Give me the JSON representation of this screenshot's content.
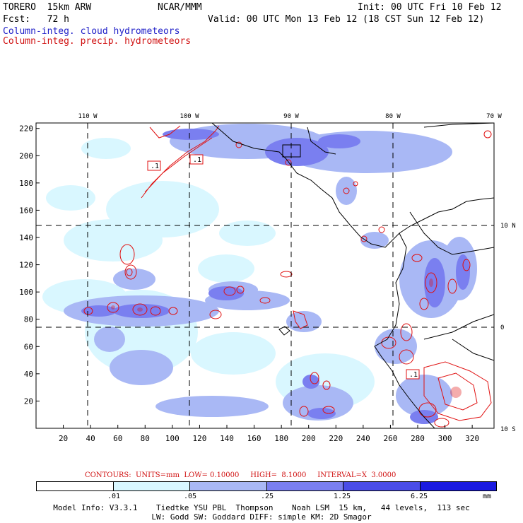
{
  "header": {
    "model": "TORERO  15km ARW",
    "center": "NCAR/MMM",
    "init": "Init: 00 UTC Fri 10 Feb 12",
    "fcst": "Fcst:   72 h",
    "valid": "Valid: 00 UTC Mon 13 Feb 12 (18 CST Sun 12 Feb 12)",
    "field1": "Column-integ. cloud hydrometeors",
    "field2": "Column-integ. precip. hydrometeors"
  },
  "map": {
    "lon_labels": [
      "110 W",
      "100 W",
      "90 W",
      "80 W",
      "70 W"
    ],
    "lat_labels": [
      "10 N",
      "0",
      "10 S"
    ],
    "y_ticks": [
      "220",
      "200",
      "180",
      "160",
      "140",
      "120",
      "100",
      "80",
      "60",
      "40",
      "20"
    ],
    "x_ticks": [
      "20",
      "40",
      "60",
      "80",
      "100",
      "120",
      "140",
      "160",
      "180",
      "200",
      "220",
      "240",
      "260",
      "280",
      "300",
      "320"
    ],
    "contour_labels": [
      ".1",
      ".1",
      ".1"
    ]
  },
  "legend": {
    "contours": "CONTOURS:  UNITS=mm  LOW= 0.10000     HIGH=  8.1000     INTERVAL=X  3.0000",
    "ticks": [
      ".01",
      ".05",
      ".25",
      "1.25",
      "6.25"
    ],
    "units": "mm",
    "colors": [
      "#ffffff",
      "#d9f7ff",
      "#a9b8f5",
      "#7a7ff0",
      "#4a4de8",
      "#1a1ae0"
    ]
  },
  "footer": {
    "line1": "Model Info: V3.3.1    Tiedtke YSU PBL  Thompson    Noah LSM  15 km,   44 levels,  113 sec",
    "line2": "LW: Godd SW: Goddard DIFF: simple KM: 2D Smagor"
  }
}
